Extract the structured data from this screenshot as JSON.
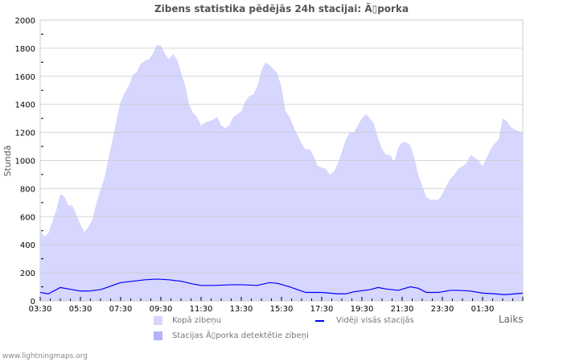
{
  "chart_data": {
    "type": "area",
    "title": "Zibens statistika pēdējās 24h stacijai: Ã▯porka",
    "xlabel": "Laiks",
    "ylabel": "Stundā",
    "ylim": [
      0,
      2000
    ],
    "yticks": [
      "0",
      "200",
      "400",
      "600",
      "800",
      "1000",
      "1200",
      "1400",
      "1600",
      "1800",
      "2000"
    ],
    "xticks": [
      "03:30",
      "05:30",
      "07:30",
      "09:30",
      "11:30",
      "13:30",
      "15:30",
      "17:30",
      "19:30",
      "21:30",
      "23:30",
      "01:30"
    ],
    "x_unit": "hours since 03:30",
    "grid": true,
    "legend_placement": "bottom",
    "series": [
      {
        "name": "Kopā zibeņu",
        "style": "area",
        "color": "#d6d6fe",
        "x": [
          0,
          0.2,
          0.4,
          0.6,
          0.8,
          1,
          1.2,
          1.4,
          1.6,
          1.8,
          2,
          2.2,
          2.4,
          2.6,
          2.8,
          3,
          3.2,
          3.4,
          3.6,
          3.8,
          4,
          4.2,
          4.4,
          4.6,
          4.8,
          5,
          5.2,
          5.4,
          5.6,
          5.8,
          6,
          6.2,
          6.4,
          6.6,
          6.8,
          7,
          7.2,
          7.4,
          7.6,
          7.8,
          8,
          8.2,
          8.4,
          8.6,
          8.8,
          9,
          9.2,
          9.4,
          9.6,
          9.8,
          10,
          10.2,
          10.4,
          10.6,
          10.8,
          11,
          11.2,
          11.4,
          11.6,
          11.8,
          12,
          12.2,
          12.4,
          12.6,
          12.8,
          13,
          13.2,
          13.4,
          13.6,
          13.8,
          14,
          14.2,
          14.4,
          14.6,
          14.8,
          15,
          15.2,
          15.4,
          15.6,
          15.8,
          16,
          16.2,
          16.4,
          16.6,
          16.8,
          17,
          17.2,
          17.4,
          17.6,
          17.8,
          18,
          18.2,
          18.4,
          18.6,
          18.8,
          19,
          19.2,
          19.4,
          19.6,
          19.8,
          20,
          20.2,
          20.4,
          20.6,
          20.8,
          21,
          21.2,
          21.4,
          21.6,
          21.8,
          22,
          22.2,
          22.4,
          22.6,
          22.8,
          23,
          23.2,
          23.4,
          23.6,
          23.8,
          24
        ],
        "values": [
          500,
          460,
          480,
          560,
          650,
          760,
          745,
          680,
          680,
          610,
          545,
          490,
          530,
          580,
          700,
          790,
          880,
          1020,
          1150,
          1290,
          1420,
          1480,
          1530,
          1610,
          1630,
          1690,
          1710,
          1720,
          1760,
          1820,
          1820,
          1760,
          1720,
          1760,
          1720,
          1630,
          1540,
          1400,
          1340,
          1310,
          1250,
          1270,
          1280,
          1290,
          1310,
          1250,
          1230,
          1250,
          1310,
          1330,
          1350,
          1420,
          1460,
          1470,
          1530,
          1640,
          1700,
          1680,
          1650,
          1620,
          1520,
          1350,
          1310,
          1240,
          1180,
          1120,
          1080,
          1080,
          1030,
          960,
          950,
          940,
          900,
          920,
          980,
          1060,
          1150,
          1200,
          1200,
          1250,
          1300,
          1330,
          1300,
          1260,
          1160,
          1080,
          1040,
          1040,
          990,
          1090,
          1130,
          1130,
          1110,
          1020,
          900,
          820,
          740,
          720,
          720,
          720,
          760,
          820,
          870,
          900,
          940,
          960,
          980,
          1040,
          1020,
          1000,
          960,
          1020,
          1080,
          1120,
          1150,
          1300,
          1280,
          1240,
          1220,
          1210,
          1200
        ]
      },
      {
        "name": "Vidēji visās stacijās",
        "style": "line",
        "color": "#0000ff",
        "x": [
          0,
          0.4,
          1,
          1.4,
          2,
          2.4,
          3,
          3.4,
          4,
          4.6,
          5.2,
          5.8,
          6.4,
          7,
          7.6,
          8,
          8.6,
          9.6,
          10,
          10.8,
          11.4,
          11.8,
          12.4,
          12.8,
          13.2,
          14,
          14.8,
          15.2,
          15.6,
          16.4,
          16.8,
          17.2,
          17.8,
          18.4,
          18.8,
          19.2,
          19.8,
          20.4,
          20.8,
          21.4,
          22,
          22.6,
          23,
          23.2,
          24
        ],
        "values": [
          60,
          50,
          95,
          85,
          70,
          70,
          80,
          100,
          130,
          140,
          150,
          155,
          150,
          140,
          120,
          110,
          110,
          115,
          115,
          110,
          130,
          125,
          100,
          80,
          60,
          60,
          50,
          50,
          65,
          80,
          95,
          85,
          75,
          100,
          90,
          60,
          60,
          75,
          75,
          70,
          55,
          50,
          45,
          45,
          55
        ]
      },
      {
        "name": "Stacijas Ã▯porka detektētie zibeņi",
        "style": "area",
        "color": "#b3b3fd",
        "x": [],
        "values": []
      }
    ]
  },
  "footer": "www.lightningmaps.org"
}
